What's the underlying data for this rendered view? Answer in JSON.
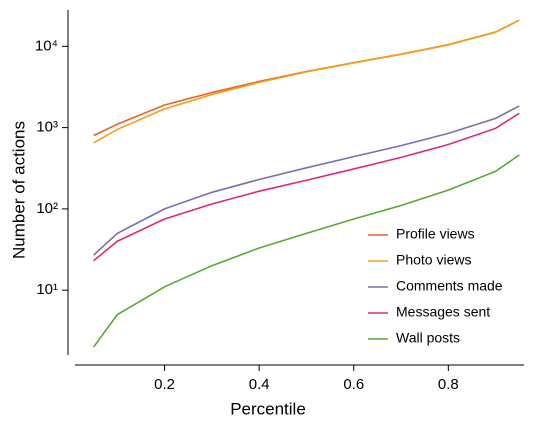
{
  "chart_data": {
    "type": "line",
    "xlabel": "Percentile",
    "ylabel": "Number of actions",
    "x": [
      0.05,
      0.1,
      0.2,
      0.3,
      0.4,
      0.5,
      0.6,
      0.7,
      0.8,
      0.9,
      0.95
    ],
    "series": [
      {
        "name": "Profile views",
        "color": "#e8642a",
        "values": [
          800,
          1100,
          1900,
          2700,
          3700,
          4900,
          6300,
          8000,
          10500,
          15000,
          21000
        ]
      },
      {
        "name": "Photo views",
        "color": "#f0a01e",
        "values": [
          650,
          950,
          1700,
          2550,
          3600,
          4850,
          6250,
          7950,
          10400,
          14900,
          21000
        ]
      },
      {
        "name": "Comments made",
        "color": "#7b6fb0",
        "values": [
          27,
          50,
          100,
          160,
          230,
          320,
          440,
          600,
          850,
          1300,
          1850
        ]
      },
      {
        "name": "Messages sent",
        "color": "#e0287a",
        "values": [
          23,
          40,
          75,
          115,
          165,
          225,
          310,
          430,
          620,
          980,
          1500
        ]
      },
      {
        "name": "Wall posts",
        "color": "#5aa832",
        "values": [
          2,
          5,
          11,
          20,
          33,
          50,
          75,
          110,
          170,
          290,
          460
        ]
      }
    ],
    "xlim": [
      0,
      0.96
    ],
    "xticks": [
      0.2,
      0.4,
      0.6,
      0.8
    ],
    "ylim": [
      1.2,
      28000
    ],
    "yscale": "log",
    "yticks": [
      {
        "value": 10,
        "label": "10¹"
      },
      {
        "value": 100,
        "label": "10²"
      },
      {
        "value": 1000,
        "label": "10³"
      },
      {
        "value": 10000,
        "label": "10⁴"
      }
    ],
    "legend": "lower right"
  }
}
